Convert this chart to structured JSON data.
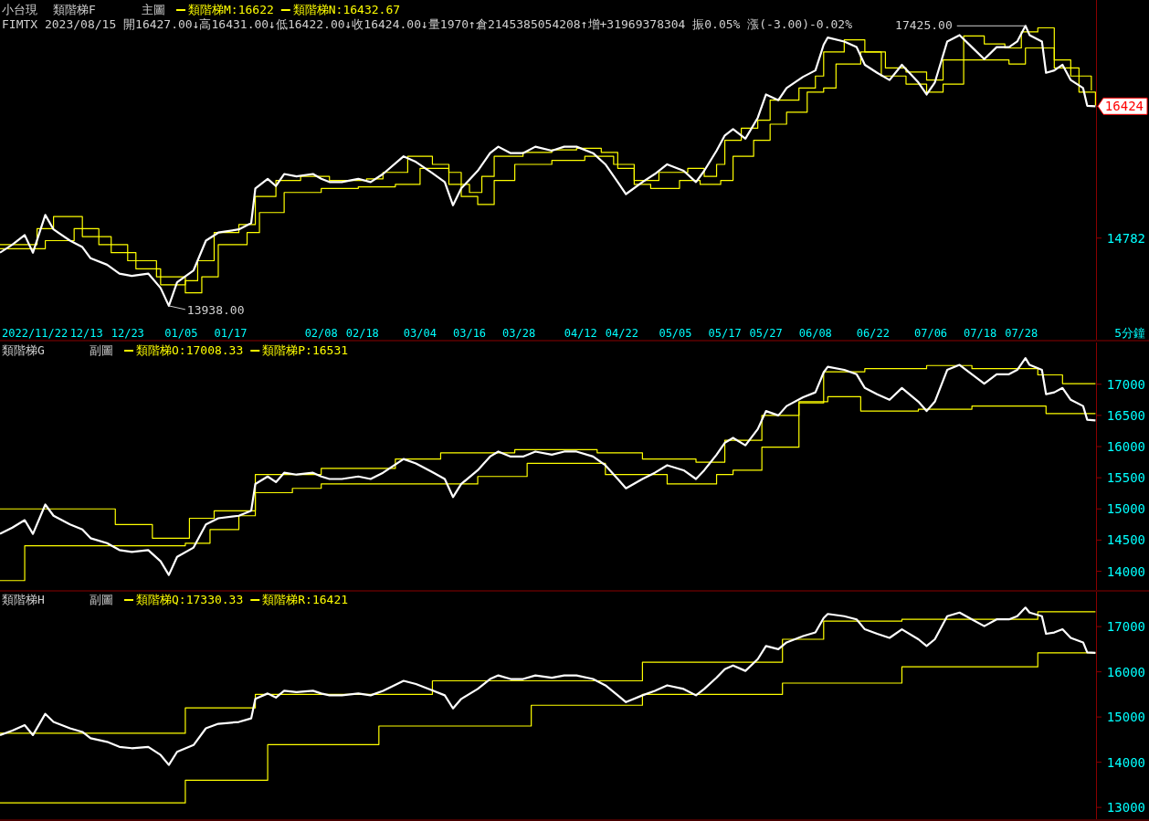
{
  "chart_data": [
    {
      "type": "line",
      "title": "小台現",
      "subtitle": "主圖",
      "annotations": [
        "類階梯F",
        "FIMTX 2023/08/15 開16427.00↓高16431.00↓低16422.00↓收16424.00↓量1970↑倉2145385054208↑增+31969378304 振0.05% 漲(-3.00)-0.02%",
        {
          "text": "17425.00",
          "x": "2023-07-29",
          "y": 17425
        },
        {
          "text": "13938.00",
          "x": "2023-01-02",
          "y": 13938
        }
      ],
      "xlabel": "5分鐘",
      "xlim": [
        "2022-11-22",
        "2023-08-28"
      ],
      "ylim": [
        13516,
        17747
      ],
      "yticks": [
        14782,
        {
          "value": 16424,
          "label": "16424"
        }
      ],
      "xticks": [
        {
          "value": "2022-11-22",
          "label": "2022/11/22"
        },
        {
          "value": "2022-12-13",
          "label": "12/13"
        },
        {
          "value": "2022-12-23",
          "label": "12/23"
        },
        {
          "value": "2023-01-05",
          "label": "01/05"
        },
        {
          "value": "2023-01-17",
          "label": "01/17"
        },
        {
          "value": "2023-02-08",
          "label": "02/08"
        },
        {
          "value": "2023-02-18",
          "label": "02/18"
        },
        {
          "value": "2023-03-04",
          "label": "03/04"
        },
        {
          "value": "2023-03-16",
          "label": "03/16"
        },
        {
          "value": "2023-03-28",
          "label": "03/28"
        },
        {
          "value": "2023-04-12",
          "label": "04/12"
        },
        {
          "value": "2023-04-22",
          "label": "04/22"
        },
        {
          "value": "2023-05-05",
          "label": "05/05"
        },
        {
          "value": "2023-05-17",
          "label": "05/17"
        },
        {
          "value": "2023-05-27",
          "label": "05/27"
        },
        {
          "value": "2023-06-08",
          "label": "06/08"
        },
        {
          "value": "2023-06-22",
          "label": "06/22"
        },
        {
          "value": "2023-07-06",
          "label": "07/06"
        },
        {
          "value": "2023-07-18",
          "label": "07/18"
        },
        {
          "value": "2023-07-28",
          "label": "07/28"
        }
      ],
      "legend": "top left",
      "series": [
        {
          "color": "#ffffff",
          "x": [
            "2022-11-22",
            "2022-11-25",
            "2022-11-28",
            "2022-11-30",
            "2022-12-03",
            "2022-12-05",
            "2022-12-09",
            "2022-12-12",
            "2022-12-14",
            "2022-12-18",
            "2022-12-21",
            "2022-12-24",
            "2022-12-28",
            "2022-12-31",
            "2023-01-02",
            "2023-01-04",
            "2023-01-08",
            "2023-01-11",
            "2023-01-14",
            "2023-01-19",
            "2023-01-22",
            "2023-01-23",
            "2023-01-26",
            "2023-01-28",
            "2023-01-30",
            "2023-02-02",
            "2023-02-06",
            "2023-02-08",
            "2023-02-10",
            "2023-02-13",
            "2023-02-17",
            "2023-02-20",
            "2023-02-23",
            "2023-02-28",
            "2023-03-03",
            "2023-03-07",
            "2023-03-10",
            "2023-03-12",
            "2023-03-14",
            "2023-03-18",
            "2023-03-21",
            "2023-03-23",
            "2023-03-26",
            "2023-03-29",
            "2023-04-01",
            "2023-04-05",
            "2023-04-08",
            "2023-04-11",
            "2023-04-15",
            "2023-04-18",
            "2023-04-21",
            "2023-04-23",
            "2023-04-27",
            "2023-04-30",
            "2023-05-03",
            "2023-05-07",
            "2023-05-10",
            "2023-05-12",
            "2023-05-15",
            "2023-05-17",
            "2023-05-19",
            "2023-05-22",
            "2023-05-25",
            "2023-05-27",
            "2023-05-30",
            "2023-06-01",
            "2023-06-05",
            "2023-06-08",
            "2023-06-10",
            "2023-06-11",
            "2023-06-15",
            "2023-06-18",
            "2023-06-20",
            "2023-06-23",
            "2023-06-26",
            "2023-06-29",
            "2023-07-03",
            "2023-07-05",
            "2023-07-07",
            "2023-07-10",
            "2023-07-13",
            "2023-07-16",
            "2023-07-19",
            "2023-07-22",
            "2023-07-25",
            "2023-07-27",
            "2023-07-29",
            "2023-07-30",
            "2023-08-02",
            "2023-08-03",
            "2023-08-05",
            "2023-08-07",
            "2023-08-09",
            "2023-08-12",
            "2023-08-13",
            "2023-08-15"
          ],
          "values": [
            14600,
            14700,
            14820,
            14600,
            15070,
            14890,
            14750,
            14670,
            14530,
            14450,
            14340,
            14310,
            14340,
            14160,
            13938,
            14230,
            14380,
            14750,
            14850,
            14890,
            14970,
            15400,
            15520,
            15430,
            15580,
            15550,
            15580,
            15520,
            15480,
            15480,
            15520,
            15480,
            15580,
            15800,
            15730,
            15590,
            15480,
            15190,
            15400,
            15620,
            15840,
            15920,
            15840,
            15840,
            15920,
            15870,
            15920,
            15920,
            15840,
            15700,
            15480,
            15330,
            15480,
            15580,
            15700,
            15620,
            15480,
            15620,
            15870,
            16060,
            16140,
            16020,
            16280,
            16570,
            16500,
            16650,
            16790,
            16870,
            17190,
            17280,
            17230,
            17160,
            16940,
            16840,
            16750,
            16940,
            16720,
            16570,
            16720,
            17230,
            17310,
            17160,
            17010,
            17160,
            17160,
            17230,
            17425,
            17310,
            17230,
            16840,
            16870,
            16940,
            16750,
            16650,
            16430,
            16424
          ]
        },
        {
          "type": "step",
          "name": "類階梯M:16622",
          "color": "#ffff00",
          "x": [
            "2022-11-22",
            "2022-12-01",
            "2022-12-05",
            "2022-12-12",
            "2022-12-19",
            "2022-12-25",
            "2022-12-31",
            "2023-01-06",
            "2023-01-09",
            "2023-01-13",
            "2023-01-19",
            "2023-01-23",
            "2023-01-28",
            "2023-02-03",
            "2023-02-10",
            "2023-02-19",
            "2023-02-23",
            "2023-03-01",
            "2023-03-07",
            "2023-03-11",
            "2023-03-16",
            "2023-03-19",
            "2023-03-22",
            "2023-03-29",
            "2023-04-05",
            "2023-04-11",
            "2023-04-17",
            "2023-04-21",
            "2023-04-25",
            "2023-05-01",
            "2023-05-08",
            "2023-05-12",
            "2023-05-15",
            "2023-05-17",
            "2023-05-21",
            "2023-05-25",
            "2023-05-28",
            "2023-06-04",
            "2023-06-08",
            "2023-06-10",
            "2023-06-15",
            "2023-06-20",
            "2023-06-25",
            "2023-06-30",
            "2023-07-05",
            "2023-07-09",
            "2023-07-14",
            "2023-07-19",
            "2023-07-24",
            "2023-07-28",
            "2023-08-01",
            "2023-08-05",
            "2023-08-09",
            "2023-08-14"
          ],
          "values": [
            14700,
            14900,
            15050,
            14800,
            14600,
            14400,
            14200,
            14250,
            14500,
            14850,
            14950,
            15300,
            15500,
            15550,
            15500,
            15520,
            15600,
            15800,
            15700,
            15450,
            15350,
            15550,
            15800,
            15850,
            15880,
            15900,
            15850,
            15650,
            15500,
            15600,
            15650,
            15550,
            15700,
            16000,
            16150,
            16250,
            16500,
            16650,
            16800,
            17100,
            17250,
            17100,
            16900,
            16850,
            16750,
            17000,
            17300,
            17200,
            17150,
            17350,
            17400,
            17000,
            16800,
            16622
          ]
        },
        {
          "type": "step",
          "name": "類階梯N:16432.67",
          "color": "#ffff00",
          "x": [
            "2022-11-22",
            "2022-12-03",
            "2022-12-10",
            "2022-12-16",
            "2022-12-23",
            "2022-12-30",
            "2023-01-06",
            "2023-01-10",
            "2023-01-14",
            "2023-01-21",
            "2023-01-24",
            "2023-01-30",
            "2023-02-08",
            "2023-02-17",
            "2023-02-26",
            "2023-03-04",
            "2023-03-11",
            "2023-03-14",
            "2023-03-18",
            "2023-03-22",
            "2023-03-27",
            "2023-04-05",
            "2023-04-13",
            "2023-04-20",
            "2023-04-25",
            "2023-04-29",
            "2023-05-06",
            "2023-05-11",
            "2023-05-16",
            "2023-05-19",
            "2023-05-24",
            "2023-05-28",
            "2023-06-01",
            "2023-06-06",
            "2023-06-10",
            "2023-06-13",
            "2023-06-19",
            "2023-06-24",
            "2023-06-30",
            "2023-07-05",
            "2023-07-09",
            "2023-07-14",
            "2023-07-20",
            "2023-07-25",
            "2023-07-29",
            "2023-08-05",
            "2023-08-11",
            "2023-08-15"
          ],
          "values": [
            14650,
            14750,
            14900,
            14700,
            14500,
            14300,
            14100,
            14300,
            14700,
            14850,
            15100,
            15350,
            15400,
            15420,
            15450,
            15650,
            15600,
            15300,
            15200,
            15500,
            15700,
            15750,
            15800,
            15700,
            15450,
            15400,
            15500,
            15450,
            15500,
            15800,
            16000,
            16200,
            16350,
            16600,
            16650,
            16950,
            17100,
            16800,
            16700,
            16600,
            16700,
            17000,
            17000,
            16950,
            17150,
            16900,
            16600,
            16432.67
          ]
        }
      ]
    },
    {
      "type": "line",
      "title": "類階梯G",
      "subtitle": "副圖",
      "xlim": [
        "2022-11-22",
        "2023-08-28"
      ],
      "ylim": [
        13700,
        17670
      ],
      "yticks": [
        14000,
        14500,
        15000,
        15500,
        16000,
        16500,
        17000
      ],
      "tick_labels": "y",
      "legend": "top left",
      "series": [
        {
          "color": "#ffffff",
          "x": [
            "2022-11-22",
            "2022-11-25",
            "2022-11-28",
            "2022-11-30",
            "2022-12-03",
            "2022-12-05",
            "2022-12-09",
            "2022-12-12",
            "2022-12-14",
            "2022-12-18",
            "2022-12-21",
            "2022-12-24",
            "2022-12-28",
            "2022-12-31",
            "2023-01-02",
            "2023-01-04",
            "2023-01-08",
            "2023-01-11",
            "2023-01-14",
            "2023-01-19",
            "2023-01-22",
            "2023-01-23",
            "2023-01-26",
            "2023-01-28",
            "2023-01-30",
            "2023-02-02",
            "2023-02-06",
            "2023-02-08",
            "2023-02-10",
            "2023-02-13",
            "2023-02-17",
            "2023-02-20",
            "2023-02-23",
            "2023-02-28",
            "2023-03-03",
            "2023-03-07",
            "2023-03-10",
            "2023-03-12",
            "2023-03-14",
            "2023-03-18",
            "2023-03-21",
            "2023-03-23",
            "2023-03-26",
            "2023-03-29",
            "2023-04-01",
            "2023-04-05",
            "2023-04-08",
            "2023-04-11",
            "2023-04-15",
            "2023-04-18",
            "2023-04-21",
            "2023-04-23",
            "2023-04-27",
            "2023-04-30",
            "2023-05-03",
            "2023-05-07",
            "2023-05-10",
            "2023-05-12",
            "2023-05-15",
            "2023-05-17",
            "2023-05-19",
            "2023-05-22",
            "2023-05-25",
            "2023-05-27",
            "2023-05-30",
            "2023-06-01",
            "2023-06-05",
            "2023-06-08",
            "2023-06-10",
            "2023-06-11",
            "2023-06-15",
            "2023-06-18",
            "2023-06-20",
            "2023-06-23",
            "2023-06-26",
            "2023-06-29",
            "2023-07-03",
            "2023-07-05",
            "2023-07-07",
            "2023-07-10",
            "2023-07-13",
            "2023-07-16",
            "2023-07-19",
            "2023-07-22",
            "2023-07-25",
            "2023-07-27",
            "2023-07-29",
            "2023-07-30",
            "2023-08-02",
            "2023-08-03",
            "2023-08-05",
            "2023-08-07",
            "2023-08-09",
            "2023-08-12",
            "2023-08-13",
            "2023-08-15"
          ],
          "values": [
            14600,
            14700,
            14820,
            14600,
            15070,
            14890,
            14750,
            14670,
            14530,
            14450,
            14340,
            14310,
            14340,
            14160,
            13940,
            14230,
            14380,
            14750,
            14850,
            14890,
            14970,
            15400,
            15520,
            15430,
            15580,
            15550,
            15580,
            15520,
            15480,
            15480,
            15520,
            15480,
            15580,
            15800,
            15730,
            15590,
            15480,
            15190,
            15400,
            15620,
            15840,
            15920,
            15840,
            15840,
            15920,
            15870,
            15920,
            15920,
            15840,
            15700,
            15480,
            15330,
            15480,
            15580,
            15700,
            15620,
            15480,
            15620,
            15870,
            16060,
            16140,
            16020,
            16280,
            16570,
            16500,
            16650,
            16790,
            16870,
            17190,
            17280,
            17230,
            17160,
            16940,
            16840,
            16750,
            16940,
            16720,
            16570,
            16720,
            17230,
            17310,
            17160,
            17010,
            17160,
            17160,
            17230,
            17420,
            17310,
            17230,
            16840,
            16870,
            16940,
            16750,
            16650,
            16430,
            16420
          ]
        },
        {
          "type": "step",
          "name": "類階梯O:17008.33",
          "color": "#ffff00",
          "x": [
            "2022-11-22",
            "2022-12-20",
            "2022-12-29",
            "2023-01-07",
            "2023-01-13",
            "2023-01-23",
            "2023-02-08",
            "2023-02-26",
            "2023-03-09",
            "2023-03-27",
            "2023-04-16",
            "2023-04-27",
            "2023-05-10",
            "2023-05-17",
            "2023-05-26",
            "2023-06-04",
            "2023-06-10",
            "2023-06-20",
            "2023-07-05",
            "2023-07-16",
            "2023-08-01",
            "2023-08-07",
            "2023-08-15"
          ],
          "values": [
            15000,
            14750,
            14530,
            14850,
            14970,
            15550,
            15650,
            15800,
            15900,
            15950,
            15900,
            15800,
            15750,
            16100,
            16500,
            16700,
            17200,
            17250,
            17300,
            17250,
            17150,
            17010,
            17010
          ]
        },
        {
          "type": "step",
          "name": "類階梯P:16531",
          "color": "#ffff00",
          "x": [
            "2022-11-22",
            "2022-11-28",
            "2023-01-06",
            "2023-01-12",
            "2023-01-19",
            "2023-01-23",
            "2023-02-01",
            "2023-02-08",
            "2023-03-18",
            "2023-03-30",
            "2023-04-18",
            "2023-05-03",
            "2023-05-15",
            "2023-05-19",
            "2023-05-26",
            "2023-06-04",
            "2023-06-11",
            "2023-06-19",
            "2023-07-03",
            "2023-07-16",
            "2023-08-03",
            "2023-08-15"
          ],
          "values": [
            13850,
            14410,
            14450,
            14670,
            14890,
            15260,
            15330,
            15400,
            15520,
            15730,
            15550,
            15400,
            15550,
            15620,
            15990,
            16720,
            16800,
            16570,
            16600,
            16650,
            16530,
            16530
          ]
        }
      ]
    },
    {
      "type": "line",
      "title": "類階梯H",
      "subtitle": "副圖",
      "xlim": [
        "2022-11-22",
        "2023-08-28"
      ],
      "ylim": [
        12740,
        17770
      ],
      "yticks": [
        13000,
        14000,
        15000,
        16000,
        17000
      ],
      "tick_labels": "y",
      "legend": "top left",
      "series": [
        {
          "color": "#ffffff",
          "x": [
            "2022-11-22",
            "2022-11-25",
            "2022-11-28",
            "2022-11-30",
            "2022-12-03",
            "2022-12-05",
            "2022-12-09",
            "2022-12-12",
            "2022-12-14",
            "2022-12-18",
            "2022-12-21",
            "2022-12-24",
            "2022-12-28",
            "2022-12-31",
            "2023-01-02",
            "2023-01-04",
            "2023-01-08",
            "2023-01-11",
            "2023-01-14",
            "2023-01-19",
            "2023-01-22",
            "2023-01-23",
            "2023-01-26",
            "2023-01-28",
            "2023-01-30",
            "2023-02-02",
            "2023-02-06",
            "2023-02-08",
            "2023-02-10",
            "2023-02-13",
            "2023-02-17",
            "2023-02-20",
            "2023-02-23",
            "2023-02-28",
            "2023-03-03",
            "2023-03-07",
            "2023-03-10",
            "2023-03-12",
            "2023-03-14",
            "2023-03-18",
            "2023-03-21",
            "2023-03-23",
            "2023-03-26",
            "2023-03-29",
            "2023-04-01",
            "2023-04-05",
            "2023-04-08",
            "2023-04-11",
            "2023-04-15",
            "2023-04-18",
            "2023-04-21",
            "2023-04-23",
            "2023-04-27",
            "2023-04-30",
            "2023-05-03",
            "2023-05-07",
            "2023-05-10",
            "2023-05-12",
            "2023-05-15",
            "2023-05-17",
            "2023-05-19",
            "2023-05-22",
            "2023-05-25",
            "2023-05-27",
            "2023-05-30",
            "2023-06-01",
            "2023-06-05",
            "2023-06-08",
            "2023-06-10",
            "2023-06-11",
            "2023-06-15",
            "2023-06-18",
            "2023-06-20",
            "2023-06-23",
            "2023-06-26",
            "2023-06-29",
            "2023-07-03",
            "2023-07-05",
            "2023-07-07",
            "2023-07-10",
            "2023-07-13",
            "2023-07-16",
            "2023-07-19",
            "2023-07-22",
            "2023-07-25",
            "2023-07-27",
            "2023-07-29",
            "2023-07-30",
            "2023-08-02",
            "2023-08-03",
            "2023-08-05",
            "2023-08-07",
            "2023-08-09",
            "2023-08-12",
            "2023-08-13",
            "2023-08-15"
          ],
          "values": [
            14600,
            14700,
            14820,
            14600,
            15070,
            14890,
            14750,
            14670,
            14530,
            14450,
            14340,
            14310,
            14340,
            14160,
            13940,
            14230,
            14380,
            14750,
            14850,
            14890,
            14970,
            15400,
            15520,
            15430,
            15580,
            15550,
            15580,
            15520,
            15480,
            15480,
            15520,
            15480,
            15580,
            15800,
            15730,
            15590,
            15480,
            15190,
            15400,
            15620,
            15840,
            15920,
            15840,
            15840,
            15920,
            15870,
            15920,
            15920,
            15840,
            15700,
            15480,
            15330,
            15480,
            15580,
            15700,
            15620,
            15480,
            15620,
            15870,
            16060,
            16140,
            16020,
            16280,
            16570,
            16500,
            16650,
            16790,
            16870,
            17190,
            17280,
            17230,
            17160,
            16940,
            16840,
            16750,
            16940,
            16720,
            16570,
            16720,
            17230,
            17310,
            17160,
            17010,
            17160,
            17160,
            17230,
            17420,
            17310,
            17230,
            16840,
            16870,
            16940,
            16750,
            16650,
            16430,
            16420
          ]
        },
        {
          "type": "step",
          "name": "類階梯Q:17330.33",
          "color": "#ffff00",
          "x": [
            "2022-11-22",
            "2023-01-06",
            "2023-01-23",
            "2023-03-07",
            "2023-04-27",
            "2023-05-31",
            "2023-06-10",
            "2023-06-29",
            "2023-08-01",
            "2023-08-15"
          ],
          "values": [
            14640,
            15200,
            15500,
            15800,
            16210,
            16720,
            17120,
            17160,
            17330,
            17330
          ]
        },
        {
          "type": "step",
          "name": "類階梯R:16421",
          "color": "#ffff00",
          "x": [
            "2022-11-22",
            "2023-01-06",
            "2023-01-26",
            "2023-02-22",
            "2023-03-31",
            "2023-04-27",
            "2023-05-31",
            "2023-06-29",
            "2023-08-01",
            "2023-08-15"
          ],
          "values": [
            13100,
            13600,
            14390,
            14800,
            15260,
            15500,
            15750,
            16110,
            16420,
            16420
          ]
        }
      ]
    }
  ]
}
